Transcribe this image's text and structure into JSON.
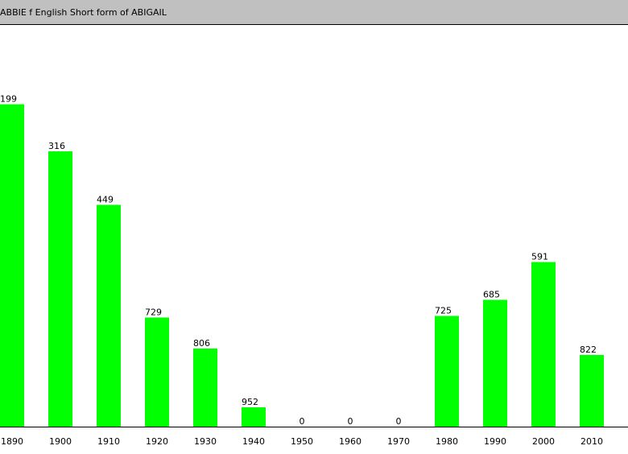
{
  "chart_data": {
    "type": "bar",
    "title": "ABBIE f English Short form of ABIGAIL",
    "categories": [
      "1890",
      "1900",
      "1910",
      "1920",
      "1930",
      "1940",
      "1950",
      "1960",
      "1970",
      "1980",
      "1990",
      "2000",
      "2010"
    ],
    "values": [
      199,
      316,
      449,
      729,
      806,
      952,
      0,
      0,
      0,
      725,
      685,
      591,
      822
    ],
    "color": "#00ff00",
    "ylim": [
      1000,
      0
    ]
  }
}
